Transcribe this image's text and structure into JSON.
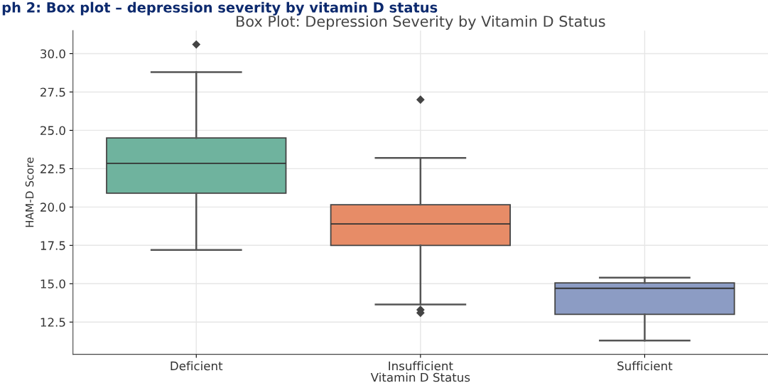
{
  "chart_data": {
    "type": "box",
    "title": "Box Plot: Depression Severity by Vitamin D Status",
    "xlabel": "Vitamin D Status",
    "ylabel": "HAM-D Score",
    "annotations": [
      "ph 2: Box plot – depression severity by vitamin D status"
    ],
    "categories": [
      "Deficient",
      "Insufficient",
      "Sufficient"
    ],
    "colors": [
      "#6fb39e",
      "#e78c67",
      "#8c9cc4"
    ],
    "boxes": [
      {
        "low": 17.2,
        "q1": 20.9,
        "median": 22.85,
        "q3": 24.5,
        "high": 28.8,
        "outliers": [
          30.6
        ]
      },
      {
        "low": 13.65,
        "q1": 17.5,
        "median": 18.9,
        "q3": 20.15,
        "high": 23.2,
        "outliers": [
          27.0,
          13.3,
          13.1
        ]
      },
      {
        "low": 11.3,
        "q1": 13.0,
        "median": 14.7,
        "q3": 15.05,
        "high": 15.4
      }
    ],
    "ylim": [
      10.4,
      31.5
    ],
    "yticks": [
      {
        "value": 12.5,
        "label": "12.5"
      },
      {
        "value": 15,
        "label": "15.0"
      },
      {
        "value": 17.5,
        "label": "17.5"
      },
      {
        "value": 20,
        "label": "20.0"
      },
      {
        "value": 22.5,
        "label": "22.5"
      },
      {
        "value": 25,
        "label": "25.0"
      },
      {
        "value": 27.5,
        "label": "27.5"
      },
      {
        "value": 30,
        "label": "30.0"
      }
    ],
    "grid": true,
    "legend": false
  }
}
